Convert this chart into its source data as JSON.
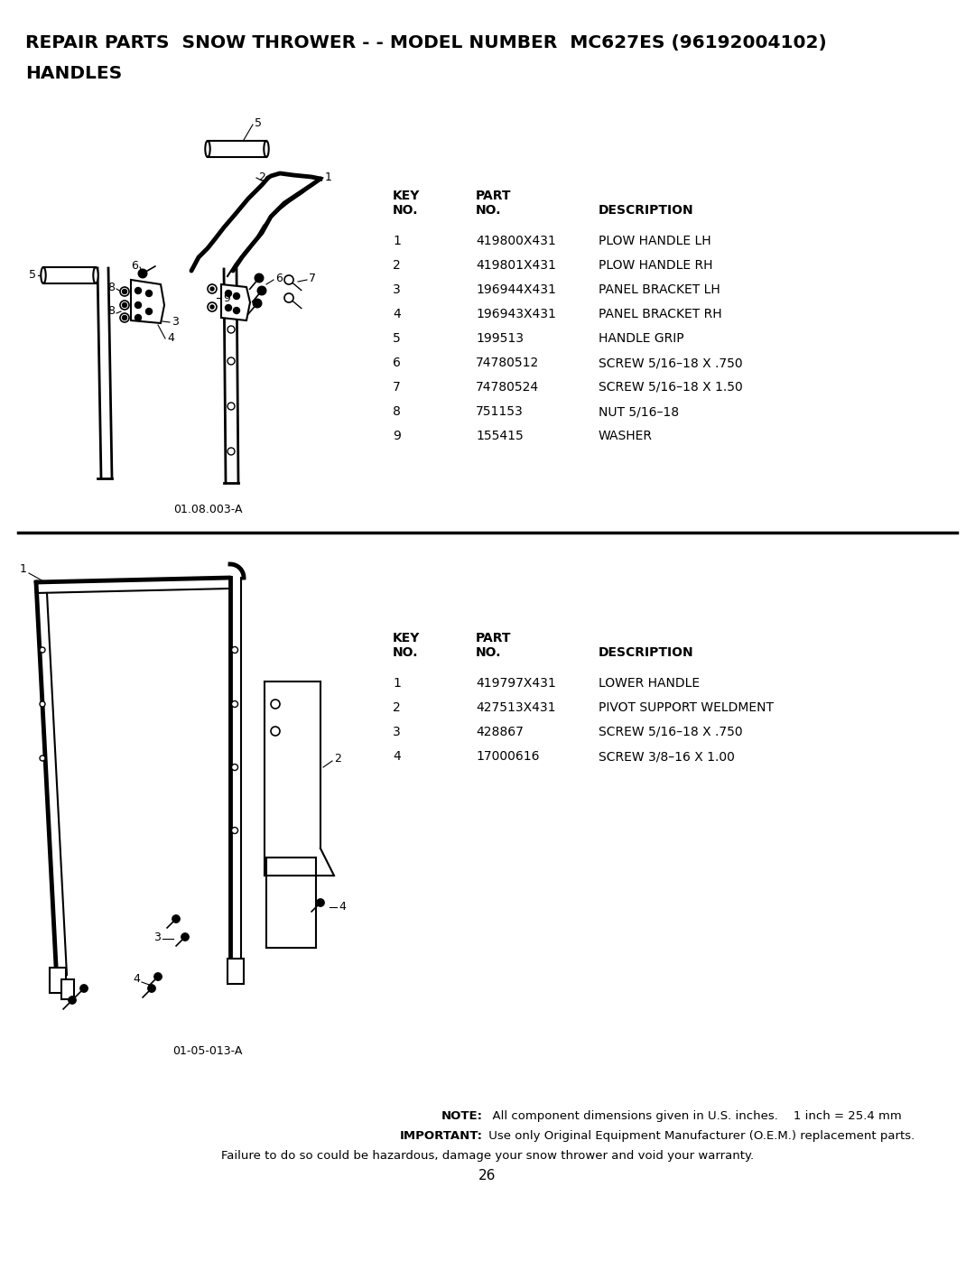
{
  "title_line1": "REPAIR PARTS  SNOW THROWER - - MODEL NUMBER  MC627ES (96192004102)",
  "title_line2": "HANDLES",
  "bg_color": "#ffffff",
  "diagram1_label": "01.08.003-A",
  "diagram2_label": "01-05-013-A",
  "page_number": "26",
  "table1_rows": [
    [
      "1",
      "419800X431",
      "PLOW HANDLE LH"
    ],
    [
      "2",
      "419801X431",
      "PLOW HANDLE RH"
    ],
    [
      "3",
      "196944X431",
      "PANEL BRACKET LH"
    ],
    [
      "4",
      "196943X431",
      "PANEL BRACKET RH"
    ],
    [
      "5",
      "199513",
      "HANDLE GRIP"
    ],
    [
      "6",
      "74780512",
      "SCREW 5/16–18 X .750"
    ],
    [
      "7",
      "74780524",
      "SCREW 5/16–18 X 1.50"
    ],
    [
      "8",
      "751153",
      "NUT 5/16–18"
    ],
    [
      "9",
      "155415",
      "WASHER"
    ]
  ],
  "table2_rows": [
    [
      "1",
      "419797X431",
      "LOWER HANDLE"
    ],
    [
      "2",
      "427513X431",
      "PIVOT SUPPORT WELDMENT"
    ],
    [
      "3",
      "428867",
      "SCREW 5/16–18 X .750"
    ],
    [
      "4",
      "17000616",
      "SCREW 3/8–16 X 1.00"
    ]
  ],
  "note_bold1": "NOTE:",
  "note_rest1": "  All component dimensions given in U.S. inches.    1 inch = 25.4 mm",
  "note_bold2": "IMPORTANT:",
  "note_rest2": " Use only Original Equipment Manufacturer (O.E.M.) replacement parts.",
  "note_line3": "Failure to do so could be hazardous, damage your snow thrower and void your warranty."
}
